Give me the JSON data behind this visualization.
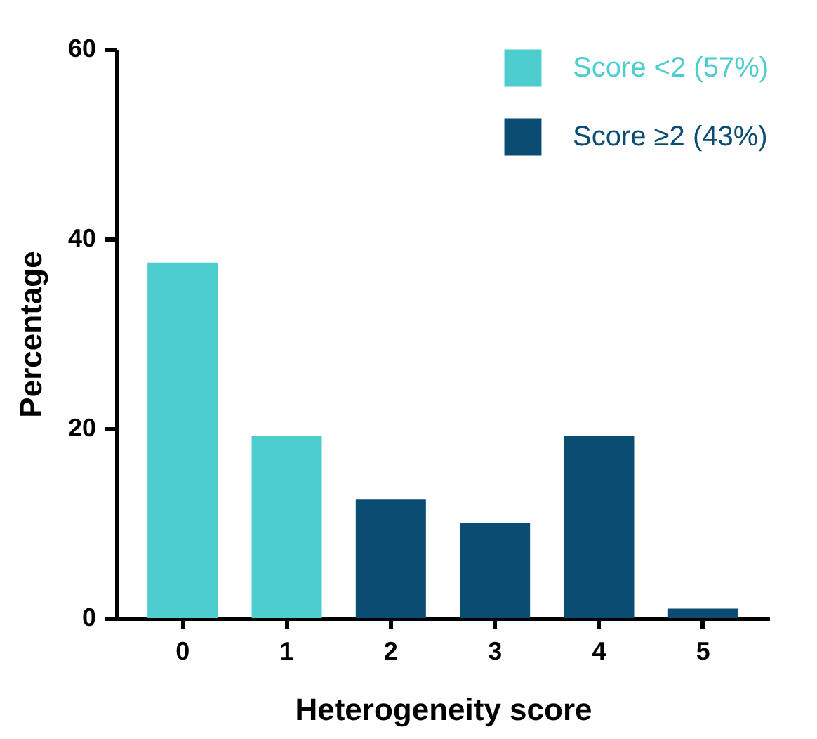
{
  "chart_data": {
    "type": "bar",
    "xlabel": "Heterogeneity score",
    "ylabel": "Percentage",
    "categories": [
      "0",
      "1",
      "2",
      "3",
      "4",
      "5"
    ],
    "series": [
      {
        "name": "Score <2 (57%)",
        "color": "#4ecdcf",
        "values": [
          37.5,
          19.2,
          null,
          null,
          null,
          null
        ]
      },
      {
        "name": "Score ≥2 (43%)",
        "color": "#0b4c72",
        "values": [
          null,
          null,
          12.5,
          10.0,
          19.2,
          1.0
        ]
      }
    ],
    "ylim": [
      0,
      60
    ],
    "yticks": [
      0,
      20,
      40,
      60
    ],
    "grid": false,
    "legend": "top right"
  }
}
